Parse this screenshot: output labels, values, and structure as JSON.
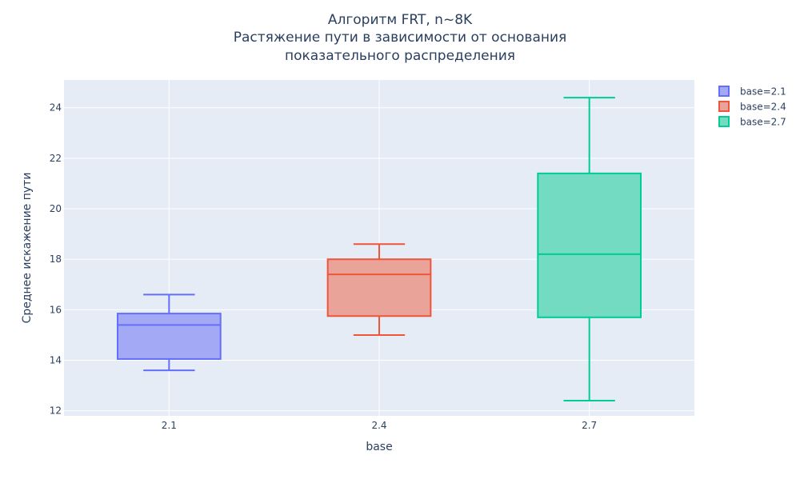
{
  "chart_data": {
    "type": "box",
    "title_lines": [
      "Алгоритм FRT, n~8K",
      "Растяжение пути в зависимости от основания",
      "показательного распределения"
    ],
    "xlabel": "base",
    "ylabel": "Среднее искажение пути",
    "categories": [
      "2.1",
      "2.4",
      "2.7"
    ],
    "yticks": [
      "12",
      "14",
      "16",
      "18",
      "20",
      "22",
      "24"
    ],
    "ylim": [
      11.8,
      25.1
    ],
    "grid": true,
    "legend_position": "top-right",
    "series": [
      {
        "name": "base=2.1",
        "category": "2.1",
        "color": "#636efa",
        "fill": "#a4a9f5",
        "min": 13.6,
        "q1": 14.05,
        "median": 15.4,
        "q3": 15.85,
        "max": 16.6
      },
      {
        "name": "base=2.4",
        "category": "2.4",
        "color": "#ef553b",
        "fill": "#e9a398",
        "min": 15.0,
        "q1": 15.75,
        "median": 17.4,
        "q3": 18.0,
        "max": 18.6
      },
      {
        "name": "base=2.7",
        "category": "2.7",
        "color": "#00cc96",
        "fill": "#73dbc2",
        "min": 12.4,
        "q1": 15.7,
        "median": 18.2,
        "q3": 21.4,
        "max": 24.4
      }
    ]
  }
}
